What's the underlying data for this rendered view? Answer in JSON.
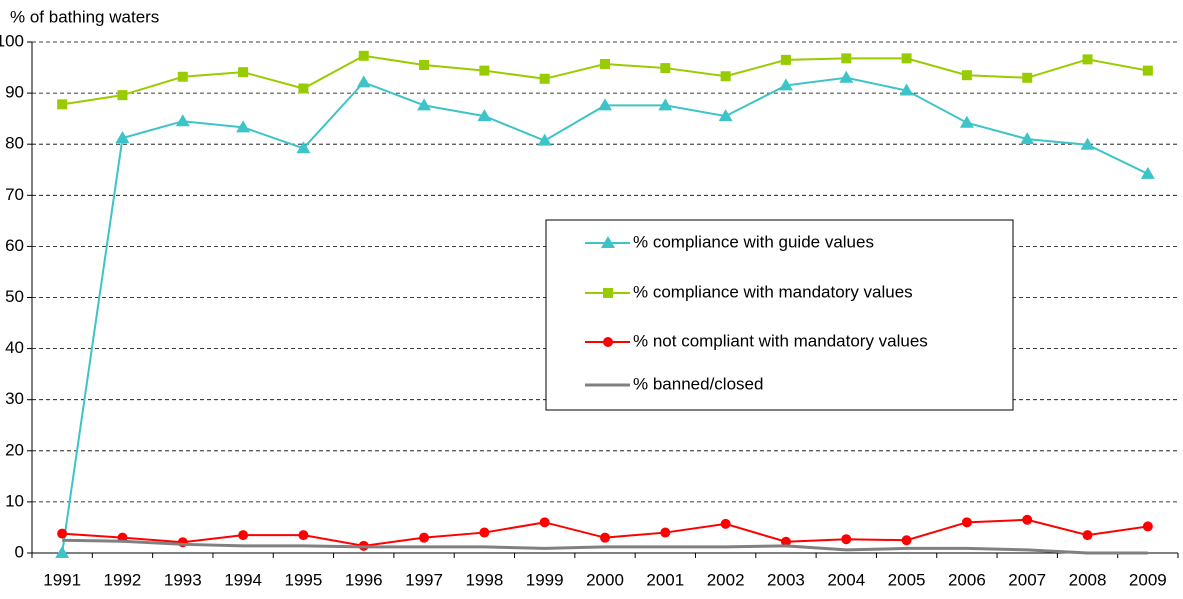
{
  "chart_data": {
    "type": "line",
    "y_axis_label": "% of bathing waters",
    "categories": [
      "1991",
      "1992",
      "1993",
      "1994",
      "1995",
      "1996",
      "1997",
      "1998",
      "1999",
      "2000",
      "2001",
      "2002",
      "2003",
      "2004",
      "2005",
      "2006",
      "2007",
      "2008",
      "2009"
    ],
    "series": [
      {
        "name": "% compliance with guide values",
        "color": "#3cc4c8",
        "marker": "triangle",
        "values": [
          0,
          81.2,
          84.5,
          83.3,
          79.2,
          92.1,
          87.6,
          85.5,
          80.7,
          87.6,
          87.6,
          85.5,
          91.5,
          93.0,
          90.5,
          84.2,
          81.0,
          79.9,
          74.2
        ]
      },
      {
        "name": "% compliance with mandatory values",
        "color": "#99cc00",
        "marker": "square",
        "values": [
          87.8,
          89.6,
          93.2,
          94.1,
          90.9,
          97.3,
          95.5,
          94.4,
          92.8,
          95.7,
          94.9,
          93.3,
          96.5,
          96.8,
          96.8,
          93.5,
          93.0,
          96.6,
          94.4
        ]
      },
      {
        "name": "% not compliant with mandatory values",
        "color": "#ff0000",
        "marker": "circle",
        "values": [
          3.8,
          3.0,
          2.1,
          3.5,
          3.5,
          1.4,
          3.0,
          4.0,
          6.0,
          3.0,
          4.0,
          5.7,
          2.2,
          2.7,
          2.5,
          6.0,
          6.5,
          3.5,
          5.2
        ]
      },
      {
        "name": "% banned/closed",
        "color": "#808080",
        "values": [
          2.5,
          2.3,
          1.7,
          1.4,
          1.4,
          1.2,
          1.2,
          1.2,
          0.9,
          1.2,
          1.2,
          1.2,
          1.4,
          0.6,
          0.9,
          0.9,
          0.6,
          0,
          0
        ]
      }
    ],
    "ylim": [
      0,
      100
    ],
    "yticks": [
      0,
      10,
      20,
      30,
      40,
      50,
      60,
      70,
      80,
      90,
      100
    ],
    "grid": true,
    "legend": "center-right"
  }
}
